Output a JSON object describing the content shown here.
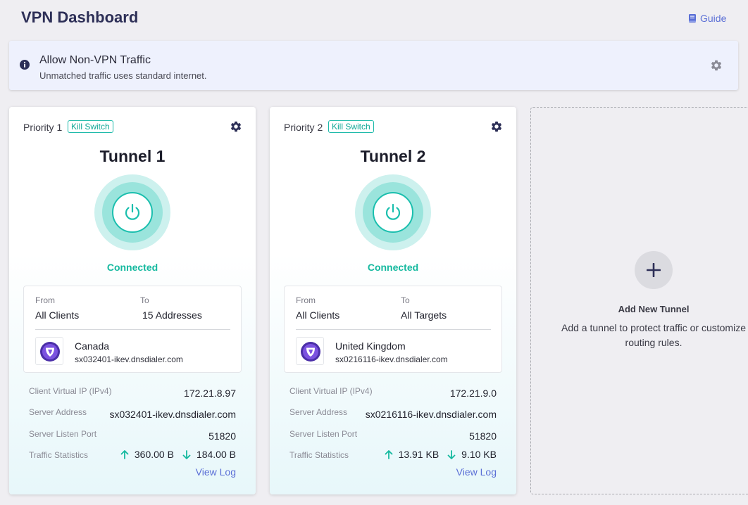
{
  "header": {
    "title": "VPN Dashboard",
    "guide_label": "Guide",
    "guide_icon": "book-icon"
  },
  "banner": {
    "title": "Allow Non-VPN Traffic",
    "subtitle": "Unmatched traffic uses standard internet.",
    "info_icon": "info-icon",
    "settings_icon": "gear-icon"
  },
  "colors": {
    "accent_teal": "#15b99f",
    "link_blue": "#5b6fd6",
    "title_navy": "#2d2f57"
  },
  "tunnels": [
    {
      "priority": "Priority 1",
      "badge": "Kill Switch",
      "name": "Tunnel 1",
      "status": "Connected",
      "from_label": "From",
      "from_value": "All Clients",
      "to_label": "To",
      "to_value": "15 Addresses",
      "country": "Canada",
      "host": "sx032401-ikev.dnsdialer.com",
      "stats": {
        "client_ip_label": "Client Virtual IP (IPv4)",
        "client_ip": "172.21.8.97",
        "server_address_label": "Server Address",
        "server_address": "sx032401-ikev.dnsdialer.com",
        "listen_port_label": "Server Listen Port",
        "listen_port": "51820",
        "traffic_label": "Traffic Statistics",
        "upload": "360.00 B",
        "download": "184.00 B"
      },
      "view_log": "View Log"
    },
    {
      "priority": "Priority 2",
      "badge": "Kill Switch",
      "name": "Tunnel 2",
      "status": "Connected",
      "from_label": "From",
      "from_value": "All Clients",
      "to_label": "To",
      "to_value": "All Targets",
      "country": "United Kingdom",
      "host": "sx0216116-ikev.dnsdialer.com",
      "stats": {
        "client_ip_label": "Client Virtual IP (IPv4)",
        "client_ip": "172.21.9.0",
        "server_address_label": "Server Address",
        "server_address": "sx0216116-ikev.dnsdialer.com",
        "listen_port_label": "Server Listen Port",
        "listen_port": "51820",
        "traffic_label": "Traffic Statistics",
        "upload": "13.91 KB",
        "download": "9.10 KB"
      },
      "view_log": "View Log"
    }
  ],
  "add_tunnel": {
    "title": "Add New Tunnel",
    "description": "Add a tunnel to protect traffic or customize routing rules.",
    "icon": "plus-icon"
  }
}
